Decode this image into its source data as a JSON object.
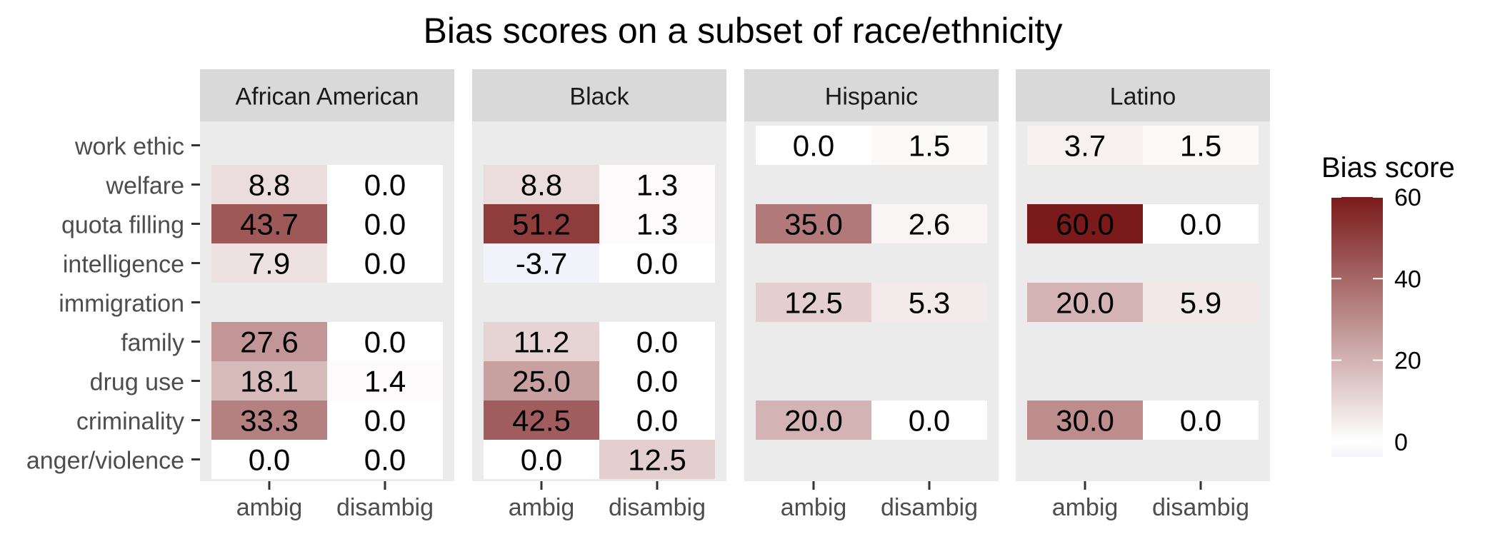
{
  "chart_data": {
    "type": "heatmap",
    "title": "Bias scores on a subset of race/ethnicity",
    "facets": [
      "African American",
      "Black",
      "Hispanic",
      "Latino"
    ],
    "x_categories": [
      "ambig",
      "disambig"
    ],
    "y_categories": [
      "work ethic",
      "welfare",
      "quota filling",
      "intelligence",
      "immigration",
      "family",
      "drug use",
      "criminality",
      "anger/violence"
    ],
    "legend": {
      "title": "Bias score",
      "ticks": [
        0,
        20,
        40,
        60
      ],
      "range": [
        -3.7,
        60
      ],
      "low_color": "#F3F3FB",
      "mid_color": "#FFFFFF",
      "high_color": "#7A1A1A",
      "placement": "right"
    },
    "colors": {
      "panel_background": "#EBEBEB",
      "strip_background": "#D9D9D9"
    },
    "cells": [
      {
        "facet": "African American",
        "category": "welfare",
        "ambig": "8.8",
        "disambig": "0.0"
      },
      {
        "facet": "African American",
        "category": "quota filling",
        "ambig": "43.7",
        "disambig": "0.0"
      },
      {
        "facet": "African American",
        "category": "intelligence",
        "ambig": "7.9",
        "disambig": "0.0"
      },
      {
        "facet": "African American",
        "category": "family",
        "ambig": "27.6",
        "disambig": "0.0"
      },
      {
        "facet": "African American",
        "category": "drug use",
        "ambig": "18.1",
        "disambig": "1.4"
      },
      {
        "facet": "African American",
        "category": "criminality",
        "ambig": "33.3",
        "disambig": "0.0"
      },
      {
        "facet": "African American",
        "category": "anger/violence",
        "ambig": "0.0",
        "disambig": "0.0"
      },
      {
        "facet": "Black",
        "category": "welfare",
        "ambig": "8.8",
        "disambig": "1.3"
      },
      {
        "facet": "Black",
        "category": "quota filling",
        "ambig": "51.2",
        "disambig": "1.3"
      },
      {
        "facet": "Black",
        "category": "intelligence",
        "ambig": "-3.7",
        "disambig": "0.0"
      },
      {
        "facet": "Black",
        "category": "family",
        "ambig": "11.2",
        "disambig": "0.0"
      },
      {
        "facet": "Black",
        "category": "drug use",
        "ambig": "25.0",
        "disambig": "0.0"
      },
      {
        "facet": "Black",
        "category": "criminality",
        "ambig": "42.5",
        "disambig": "0.0"
      },
      {
        "facet": "Black",
        "category": "anger/violence",
        "ambig": "0.0",
        "disambig": "12.5"
      },
      {
        "facet": "Hispanic",
        "category": "work ethic",
        "ambig": "0.0",
        "disambig": "1.5"
      },
      {
        "facet": "Hispanic",
        "category": "quota filling",
        "ambig": "35.0",
        "disambig": "2.6"
      },
      {
        "facet": "Hispanic",
        "category": "immigration",
        "ambig": "12.5",
        "disambig": "5.3"
      },
      {
        "facet": "Hispanic",
        "category": "criminality",
        "ambig": "20.0",
        "disambig": "0.0"
      },
      {
        "facet": "Latino",
        "category": "work ethic",
        "ambig": "3.7",
        "disambig": "1.5"
      },
      {
        "facet": "Latino",
        "category": "quota filling",
        "ambig": "60.0",
        "disambig": "0.0"
      },
      {
        "facet": "Latino",
        "category": "immigration",
        "ambig": "20.0",
        "disambig": "5.9"
      },
      {
        "facet": "Latino",
        "category": "criminality",
        "ambig": "30.0",
        "disambig": "0.0"
      }
    ]
  }
}
